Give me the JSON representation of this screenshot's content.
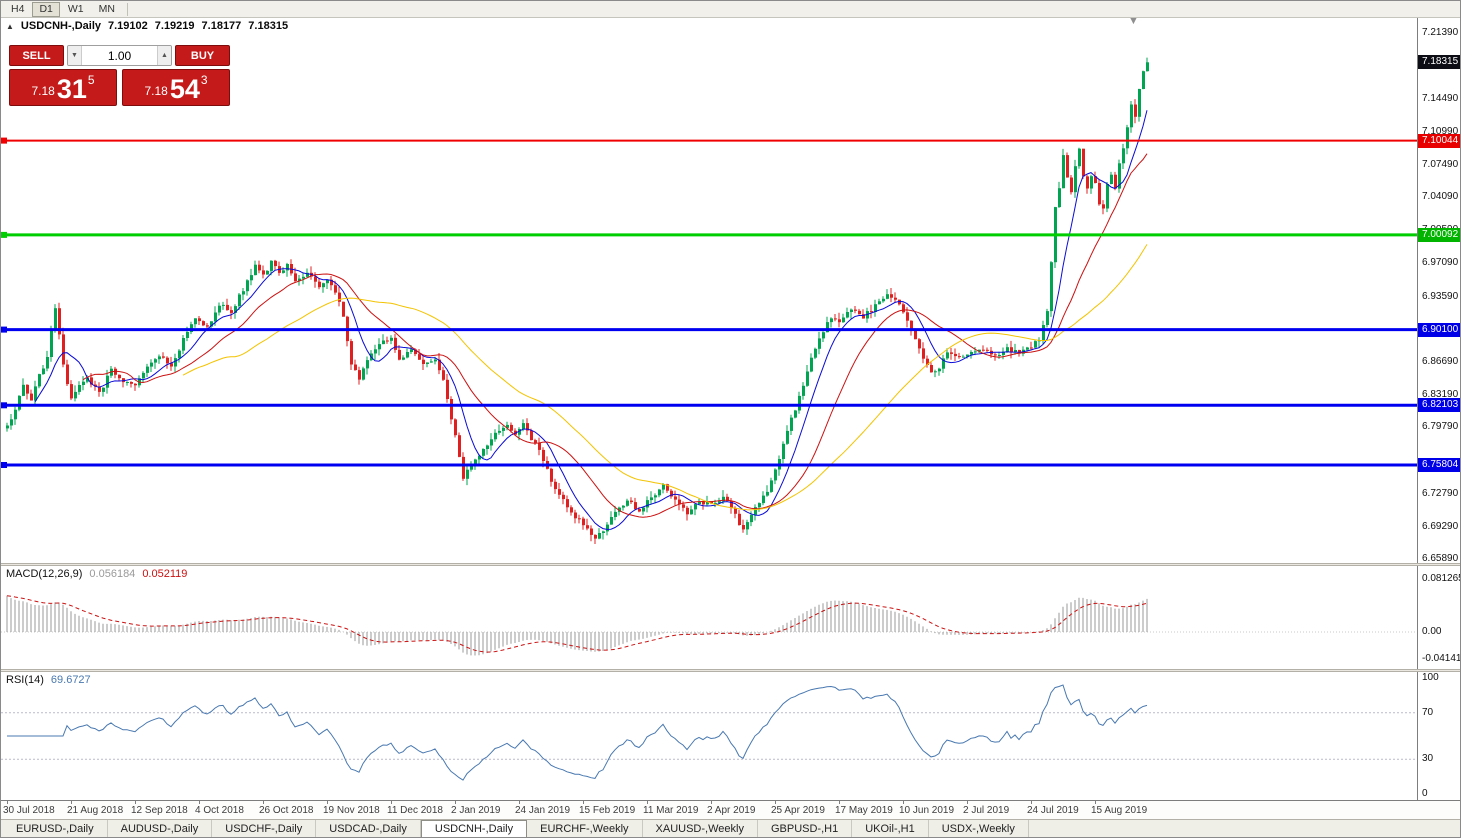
{
  "toolbar": {
    "timeframes": [
      "H4",
      "D1",
      "W1",
      "MN"
    ],
    "active": "D1"
  },
  "quote": {
    "symbol": "USDCNH-,Daily",
    "open": "7.19102",
    "high": "7.19219",
    "low": "7.18177",
    "close": "7.18315"
  },
  "icons": {
    "collapse_panel": "▲",
    "volume_down": "▼",
    "volume_up": "▲",
    "shift_marker": "▼"
  },
  "trade_panel": {
    "sell_label": "SELL",
    "buy_label": "BUY",
    "volume": "1.00",
    "sell_price": {
      "prefix": "7.18",
      "pips": "31",
      "point": "5"
    },
    "buy_price": {
      "prefix": "7.18",
      "pips": "54",
      "point": "3"
    }
  },
  "chart_data": {
    "type": "candlestick",
    "symbol": "USDCNH",
    "period": "Daily",
    "bar_count": 286,
    "x0": 6,
    "dx": 4,
    "noise": 0.005,
    "wick": 0.007,
    "seed": 97,
    "price_range": [
      6.6546,
      7.2299
    ],
    "last_close": 7.18315,
    "colors": {
      "up": "#00a551",
      "down": "#e02020",
      "ma": [
        "#0a0ad8",
        "#cc1111",
        "#f3c300"
      ],
      "hist": "#9a9a9a",
      "signal": "#cc1111",
      "rsi": "#4878b0"
    },
    "ma_periods": [
      8,
      20,
      45
    ],
    "close_anchors": [
      [
        0,
        6.798
      ],
      [
        2,
        6.818
      ],
      [
        4,
        6.842
      ],
      [
        6,
        6.828
      ],
      [
        8,
        6.852
      ],
      [
        10,
        6.872
      ],
      [
        12,
        6.922
      ],
      [
        13,
        6.896
      ],
      [
        14,
        6.862
      ],
      [
        16,
        6.826
      ],
      [
        18,
        6.842
      ],
      [
        20,
        6.85
      ],
      [
        23,
        6.834
      ],
      [
        26,
        6.858
      ],
      [
        29,
        6.846
      ],
      [
        32,
        6.844
      ],
      [
        35,
        6.862
      ],
      [
        38,
        6.874
      ],
      [
        41,
        6.862
      ],
      [
        44,
        6.89
      ],
      [
        47,
        6.912
      ],
      [
        50,
        6.904
      ],
      [
        53,
        6.928
      ],
      [
        56,
        6.92
      ],
      [
        59,
        6.944
      ],
      [
        62,
        6.968
      ],
      [
        64,
        6.958
      ],
      [
        66,
        6.972
      ],
      [
        68,
        6.96
      ],
      [
        70,
        6.968
      ],
      [
        72,
        6.95
      ],
      [
        75,
        6.962
      ],
      [
        78,
        6.946
      ],
      [
        80,
        6.954
      ],
      [
        82,
        6.94
      ],
      [
        84,
        6.916
      ],
      [
        86,
        6.862
      ],
      [
        88,
        6.85
      ],
      [
        91,
        6.876
      ],
      [
        94,
        6.888
      ],
      [
        96,
        6.892
      ],
      [
        98,
        6.87
      ],
      [
        101,
        6.882
      ],
      [
        104,
        6.864
      ],
      [
        107,
        6.87
      ],
      [
        109,
        6.848
      ],
      [
        111,
        6.806
      ],
      [
        113,
        6.768
      ],
      [
        114,
        6.744
      ],
      [
        116,
        6.758
      ],
      [
        119,
        6.774
      ],
      [
        122,
        6.79
      ],
      [
        125,
        6.802
      ],
      [
        127,
        6.788
      ],
      [
        129,
        6.8
      ],
      [
        131,
        6.786
      ],
      [
        133,
        6.772
      ],
      [
        136,
        6.742
      ],
      [
        139,
        6.72
      ],
      [
        142,
        6.704
      ],
      [
        145,
        6.69
      ],
      [
        147,
        6.678
      ],
      [
        149,
        6.69
      ],
      [
        152,
        6.708
      ],
      [
        155,
        6.722
      ],
      [
        158,
        6.71
      ],
      [
        161,
        6.724
      ],
      [
        164,
        6.736
      ],
      [
        167,
        6.72
      ],
      [
        170,
        6.708
      ],
      [
        173,
        6.72
      ],
      [
        176,
        6.716
      ],
      [
        179,
        6.724
      ],
      [
        182,
        6.706
      ],
      [
        184,
        6.688
      ],
      [
        187,
        6.712
      ],
      [
        190,
        6.73
      ],
      [
        192,
        6.752
      ],
      [
        194,
        6.78
      ],
      [
        196,
        6.806
      ],
      [
        198,
        6.83
      ],
      [
        200,
        6.858
      ],
      [
        202,
        6.882
      ],
      [
        204,
        6.9
      ],
      [
        206,
        6.914
      ],
      [
        208,
        6.908
      ],
      [
        211,
        6.924
      ],
      [
        214,
        6.914
      ],
      [
        217,
        6.926
      ],
      [
        220,
        6.936
      ],
      [
        223,
        6.928
      ],
      [
        225,
        6.912
      ],
      [
        227,
        6.892
      ],
      [
        229,
        6.872
      ],
      [
        231,
        6.854
      ],
      [
        233,
        6.862
      ],
      [
        235,
        6.876
      ],
      [
        238,
        6.87
      ],
      [
        241,
        6.876
      ],
      [
        244,
        6.882
      ],
      [
        247,
        6.874
      ],
      [
        250,
        6.88
      ],
      [
        253,
        6.876
      ],
      [
        256,
        6.882
      ],
      [
        258,
        6.892
      ],
      [
        260,
        6.92
      ],
      [
        261,
        6.97
      ],
      [
        262,
        7.028
      ],
      [
        263,
        7.052
      ],
      [
        264,
        7.086
      ],
      [
        265,
        7.062
      ],
      [
        266,
        7.048
      ],
      [
        267,
        7.074
      ],
      [
        268,
        7.09
      ],
      [
        269,
        7.064
      ],
      [
        270,
        7.05
      ],
      [
        271,
        7.064
      ],
      [
        272,
        7.056
      ],
      [
        273,
        7.034
      ],
      [
        274,
        7.028
      ],
      [
        275,
        7.054
      ],
      [
        276,
        7.064
      ],
      [
        277,
        7.05
      ],
      [
        278,
        7.074
      ],
      [
        279,
        7.092
      ],
      [
        280,
        7.114
      ],
      [
        281,
        7.138
      ],
      [
        282,
        7.124
      ],
      [
        283,
        7.154
      ],
      [
        284,
        7.174
      ],
      [
        285,
        7.18315
      ]
    ],
    "y_ticks": [
      {
        "label": "7.21390",
        "v": 7.2139
      },
      {
        "label": "7.14490",
        "v": 7.1449
      },
      {
        "label": "7.10990",
        "v": 7.1099
      },
      {
        "label": "7.07490",
        "v": 7.0749
      },
      {
        "label": "7.04090",
        "v": 7.0409
      },
      {
        "label": "7.00590",
        "v": 7.0059
      },
      {
        "label": "6.97090",
        "v": 6.9709
      },
      {
        "label": "6.93590",
        "v": 6.9359
      },
      {
        "label": "6.86690",
        "v": 6.8669
      },
      {
        "label": "6.83190",
        "v": 6.8319
      },
      {
        "label": "6.79790",
        "v": 6.7979
      },
      {
        "label": "6.72790",
        "v": 6.7279
      },
      {
        "label": "6.69290",
        "v": 6.6929
      },
      {
        "label": "6.65890",
        "v": 6.6589
      }
    ],
    "badges": [
      {
        "label": "7.18315",
        "v": 7.18315,
        "bg": "#0d0d16"
      },
      {
        "label": "7.10044",
        "v": 7.10044,
        "bg": "#e80000"
      },
      {
        "label": "7.00092",
        "v": 7.00092,
        "bg": "#00b400"
      },
      {
        "label": "6.90100",
        "v": 6.901,
        "bg": "#0000e8"
      },
      {
        "label": "6.82103",
        "v": 6.82103,
        "bg": "#0000e8"
      },
      {
        "label": "6.75804",
        "v": 6.75804,
        "bg": "#0000e8"
      }
    ],
    "hlines": [
      {
        "v": 7.10044,
        "color": "#f00000",
        "w": 2
      },
      {
        "v": 7.00092,
        "color": "#00ce00",
        "w": 3
      },
      {
        "v": 6.901,
        "color": "#0000f0",
        "w": 3
      },
      {
        "v": 6.82103,
        "color": "#0000f0",
        "w": 3
      },
      {
        "v": 6.75804,
        "color": "#0000f0",
        "w": 3
      }
    ],
    "x_labels": [
      "30 Jul 2018",
      "21 Aug 2018",
      "12 Sep 2018",
      "4 Oct 2018",
      "26 Oct 2018",
      "19 Nov 2018",
      "11 Dec 2018",
      "2 Jan 2019",
      "24 Jan 2019",
      "15 Feb 2019",
      "11 Mar 2019",
      "2 Apr 2019",
      "25 Apr 2019",
      "17 May 2019",
      "10 Jun 2019",
      "2 Jul 2019",
      "24 Jul 2019",
      "15 Aug 2019"
    ],
    "macd": {
      "label": "MACD(12,26,9)",
      "value_main": "0.056184",
      "value_signal": "0.052119",
      "range": [
        -0.0567,
        0.1012
      ],
      "seed_gap": 0.06,
      "ticks": [
        {
          "label": "0.081265",
          "v": 0.081265
        },
        {
          "label": "0.00",
          "v": 0
        },
        {
          "label": "-0.041412",
          "v": -0.041412
        }
      ]
    },
    "rsi": {
      "label": "RSI(14)",
      "value": "69.6727",
      "period": 14,
      "levels": [
        70,
        30
      ],
      "ticks": [
        {
          "label": "100",
          "v": 100
        },
        {
          "label": "70",
          "v": 70
        },
        {
          "label": "30",
          "v": 30
        },
        {
          "label": "0",
          "v": 0
        }
      ]
    }
  },
  "tabs": {
    "items": [
      "EURUSD-,Daily",
      "AUDUSD-,Daily",
      "USDCHF-,Daily",
      "USDCAD-,Daily",
      "USDCNH-,Daily",
      "EURCHF-,Weekly",
      "XAUUSD-,Weekly",
      "GBPUSD-,H1",
      "UKOil-,H1",
      "USDX-,Weekly"
    ],
    "active_index": 4
  }
}
